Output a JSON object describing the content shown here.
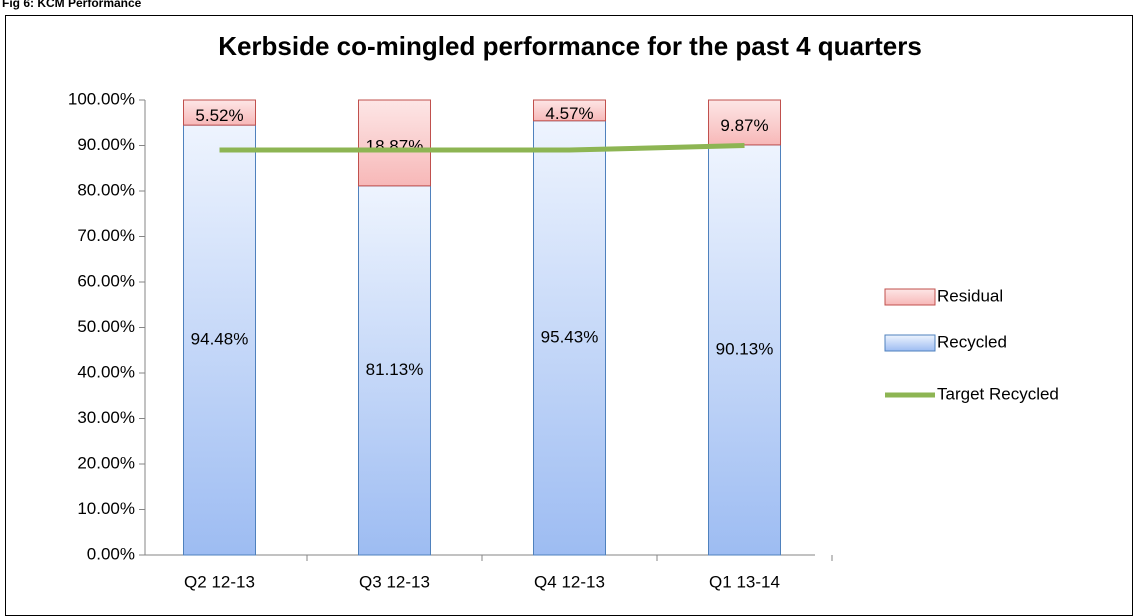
{
  "caption": "Fig 6: KCM Performance",
  "chart_data": {
    "type": "bar",
    "stacked": true,
    "title": "Kerbside co-mingled performance for the past 4 quarters",
    "categories": [
      "Q2 12-13",
      "Q3 12-13",
      "Q4 12-13",
      "Q1 13-14"
    ],
    "series": [
      {
        "name": "Recycled",
        "color": "#9dbcf2",
        "border": "#4f81bd",
        "values": [
          94.48,
          81.13,
          95.43,
          90.13
        ],
        "value_labels": [
          "94.48%",
          "81.13%",
          "95.43%",
          "90.13%"
        ]
      },
      {
        "name": "Residual",
        "color": "#f7b8b8",
        "border": "#c0504d",
        "values": [
          5.52,
          18.87,
          4.57,
          9.87
        ],
        "value_labels": [
          "5.52%",
          "18.87%",
          "4.57%",
          "9.87%"
        ]
      },
      {
        "name": "Target Recycled",
        "type": "line",
        "color": "#8db553",
        "values": [
          89,
          89,
          89,
          90
        ]
      }
    ],
    "ylim": [
      0,
      100
    ],
    "yticks": [
      {
        "value": 0,
        "label": "0.00%"
      },
      {
        "value": 10,
        "label": "10.00%"
      },
      {
        "value": 20,
        "label": "20.00%"
      },
      {
        "value": 30,
        "label": "30.00%"
      },
      {
        "value": 40,
        "label": "40.00%"
      },
      {
        "value": 50,
        "label": "50.00%"
      },
      {
        "value": 60,
        "label": "60.00%"
      },
      {
        "value": 70,
        "label": "70.00%"
      },
      {
        "value": 80,
        "label": "80.00%"
      },
      {
        "value": 90,
        "label": "90.00%"
      },
      {
        "value": 100,
        "label": "100.00%"
      }
    ],
    "legend": "right",
    "grid": false
  }
}
